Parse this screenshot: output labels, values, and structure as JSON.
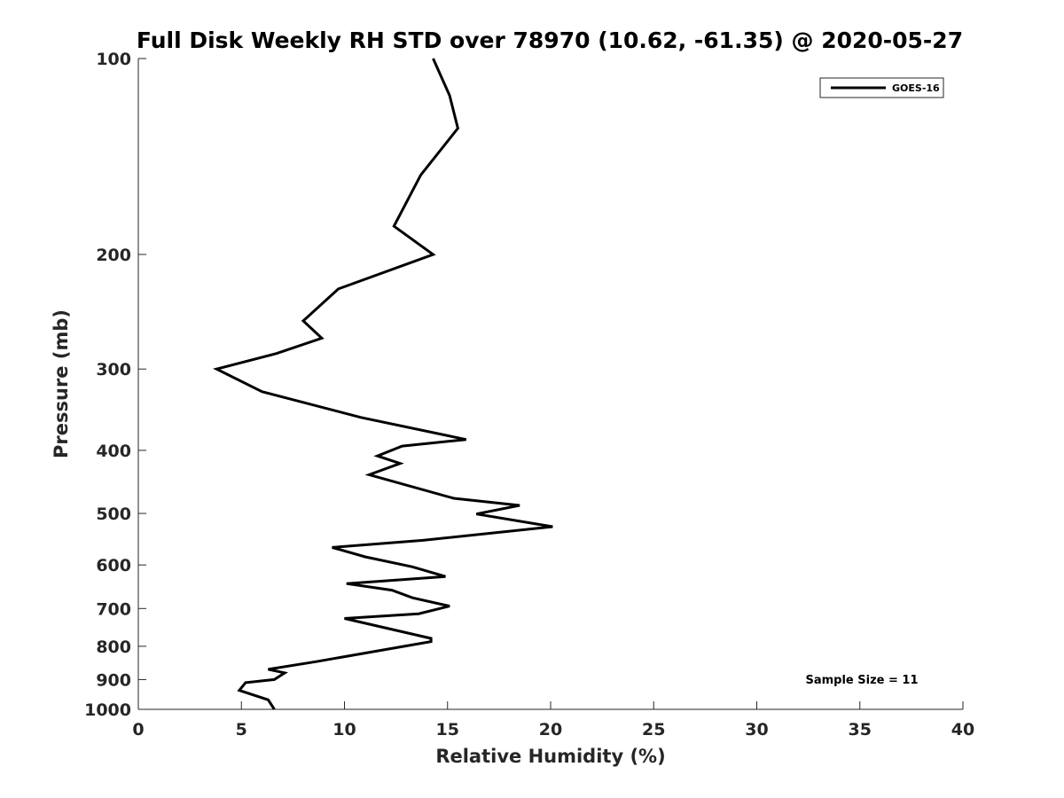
{
  "chart_data": {
    "type": "line",
    "title": "Full Disk Weekly RH STD over 78970 (10.62, -61.35) @ 2020-05-27",
    "xlabel": "Relative Humidity (%)",
    "ylabel": "Pressure (mb)",
    "xlim": [
      0,
      40
    ],
    "ylim": [
      100,
      1000
    ],
    "y_scale": "log",
    "y_reversed": true,
    "grid": false,
    "legend_position": "top-right",
    "x_ticks": [
      0,
      5,
      10,
      15,
      20,
      25,
      30,
      35,
      40
    ],
    "x_tick_labels": [
      "0",
      "5",
      "10",
      "15",
      "20",
      "25",
      "30",
      "35",
      "40"
    ],
    "y_ticks": [
      100,
      200,
      300,
      400,
      500,
      600,
      700,
      800,
      900,
      1000
    ],
    "y_tick_labels": [
      "100",
      "200",
      "300",
      "400",
      "500",
      "600",
      "700",
      "800",
      "900",
      "1000"
    ],
    "series": [
      {
        "name": "GOES-16",
        "color": "#000000",
        "x": [
          14.3,
          15.1,
          15.5,
          13.7,
          12.4,
          14.3,
          9.7,
          8.0,
          8.9,
          6.7,
          3.8,
          6.0,
          10.8,
          15.9,
          12.8,
          11.6,
          12.7,
          11.2,
          15.3,
          18.5,
          16.4,
          20.1,
          13.8,
          9.4,
          11.0,
          13.3,
          14.9,
          10.1,
          12.3,
          13.3,
          15.1,
          13.6,
          10.0,
          14.2,
          14.2,
          8.6,
          6.3,
          7.1,
          6.6,
          5.2,
          4.9,
          6.3,
          6.6
        ],
        "y": [
          100,
          114,
          128,
          151,
          181,
          200,
          226,
          253,
          269,
          284,
          300,
          325,
          356,
          385,
          394,
          408,
          419,
          436,
          474,
          486,
          501,
          524,
          550,
          564,
          583,
          604,
          625,
          641,
          656,
          674,
          694,
          713,
          725,
          778,
          787,
          845,
          868,
          879,
          900,
          910,
          935,
          967,
          1000
        ]
      }
    ],
    "legend": [
      "GOES-16"
    ],
    "annotation": "Sample Size = 11"
  }
}
